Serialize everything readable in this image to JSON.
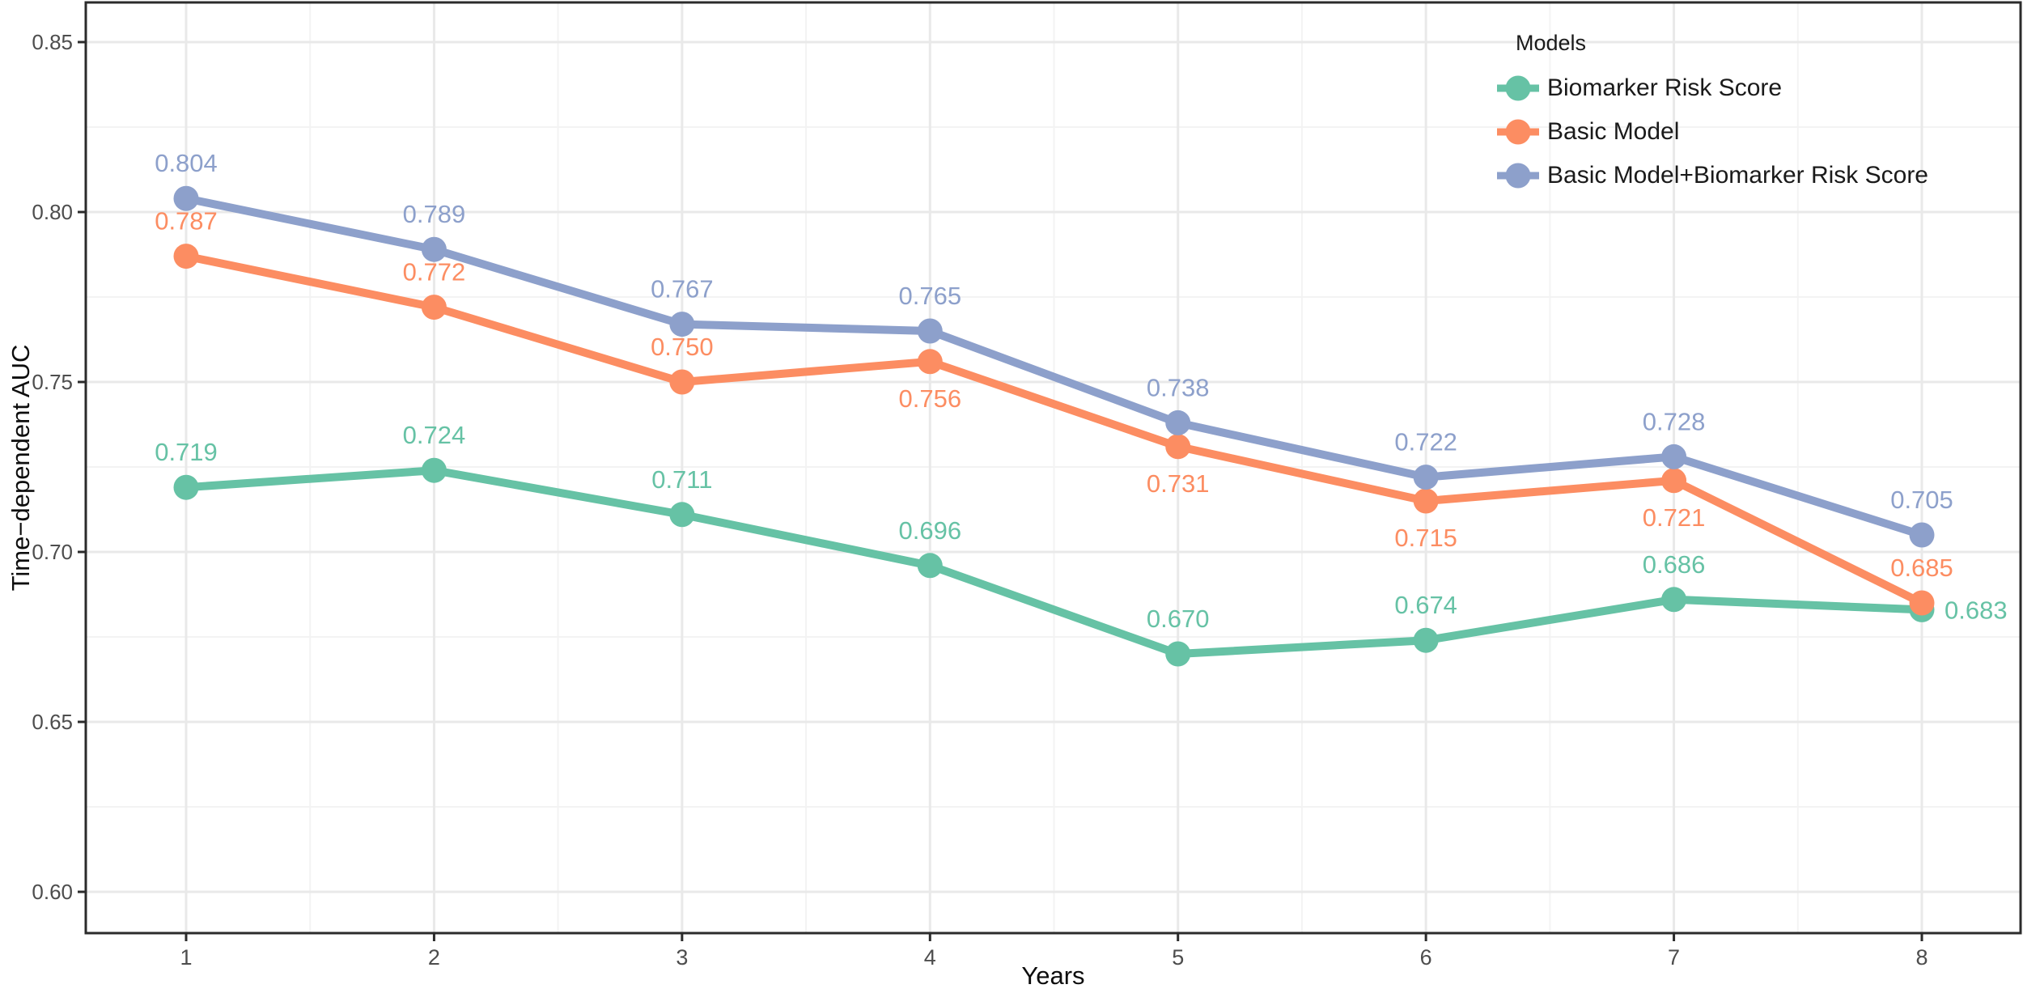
{
  "chart_data": {
    "type": "line",
    "title": "",
    "xlabel": "Years",
    "ylabel": "Time−dependent AUC",
    "x": [
      1,
      2,
      3,
      4,
      5,
      6,
      7,
      8
    ],
    "xtick_labels": [
      "1",
      "2",
      "3",
      "4",
      "5",
      "6",
      "7",
      "8"
    ],
    "yticks": [
      0.6,
      0.65,
      0.7,
      0.75,
      0.8,
      0.85
    ],
    "ytick_labels": [
      "0.60",
      "0.65",
      "0.70",
      "0.75",
      "0.80",
      "0.85"
    ],
    "xlim": [
      0.6,
      8.4
    ],
    "ylim": [
      0.588,
      0.862
    ],
    "grid": "major-and-minor",
    "legend": {
      "title": "Models",
      "position": "top-right-inside"
    },
    "series": [
      {
        "name": "Biomarker Risk Score",
        "color": "#66C2A5",
        "values": [
          0.719,
          0.724,
          0.711,
          0.696,
          0.67,
          0.674,
          0.686,
          0.683
        ],
        "labels": [
          "0.719",
          "0.724",
          "0.711",
          "0.696",
          "0.670",
          "0.674",
          "0.686",
          "0.683"
        ],
        "label_placement": [
          "above",
          "above",
          "above",
          "above",
          "above",
          "above",
          "above",
          "right"
        ]
      },
      {
        "name": "Basic Model",
        "color": "#FC8D62",
        "values": [
          0.787,
          0.772,
          0.75,
          0.756,
          0.731,
          0.715,
          0.721,
          0.685
        ],
        "labels": [
          "0.787",
          "0.772",
          "0.750",
          "0.756",
          "0.731",
          "0.715",
          "0.721",
          "0.685"
        ],
        "label_placement": [
          "above",
          "above",
          "above",
          "below",
          "below",
          "below",
          "below",
          "above"
        ]
      },
      {
        "name": "Basic Model+Biomarker Risk Score",
        "color": "#8DA0CB",
        "values": [
          0.804,
          0.789,
          0.767,
          0.765,
          0.738,
          0.722,
          0.728,
          0.705
        ],
        "labels": [
          "0.804",
          "0.789",
          "0.767",
          "0.765",
          "0.738",
          "0.722",
          "0.728",
          "0.705"
        ],
        "label_placement": [
          "above",
          "above",
          "above",
          "above",
          "above",
          "above",
          "above",
          "above"
        ]
      }
    ],
    "style_colors": {
      "grid_major": "#E9E9E9",
      "grid_minor": "#F3F3F3",
      "panel_border": "#2b2b2b",
      "tick_text": "#4d4d4d",
      "axis_title_text": "#0d0d0d"
    }
  }
}
